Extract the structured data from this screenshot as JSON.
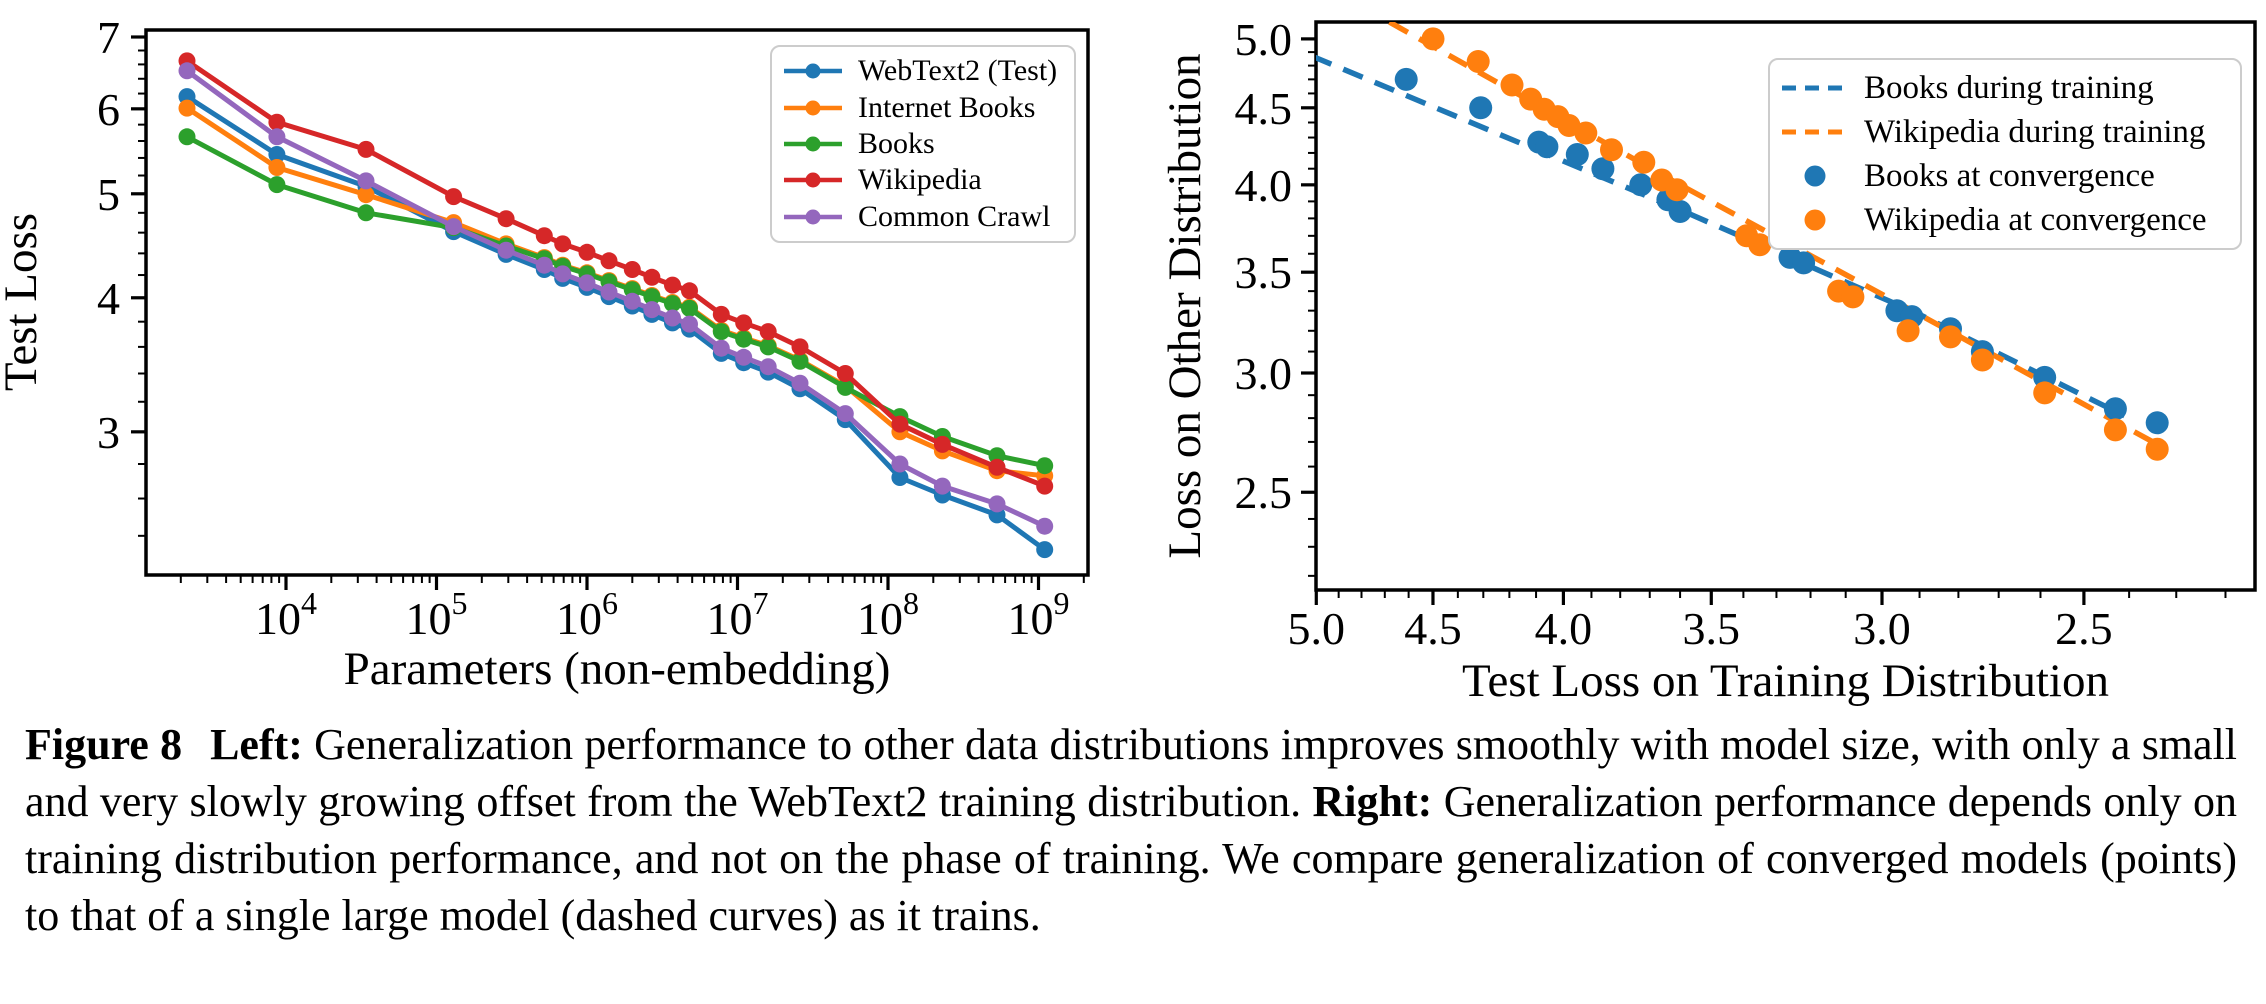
{
  "caption": {
    "figure_label": "Figure 8",
    "left_label": "Left:",
    "left_text": "Generalization performance to other data distributions improves smoothly with model size, with only a small and very slowly growing offset from the WebText2 training distribution.",
    "right_label": "Right:",
    "right_text": "Generalization performance depends only on training distribution performance, and not on the phase of training. We compare generalization of converged models (points) to that of a single large model (dashed curves) as it trains."
  },
  "colors": {
    "blue": "#1f77b4",
    "orange": "#ff7f0e",
    "green": "#2ca02c",
    "red": "#d62728",
    "purple": "#9467bd",
    "axis": "#000000",
    "legend_border": "#cccccc"
  },
  "chart_data": [
    {
      "type": "line",
      "title": "",
      "xlabel": "Parameters (non-embedding)",
      "ylabel": "Test Loss",
      "xscale": "log",
      "yscale": "log",
      "xlim": [
        1175,
        2100000000
      ],
      "ylim": [
        2.21,
        7.1
      ],
      "xticks": [
        10000,
        100000,
        1000000,
        10000000,
        100000000,
        1000000000
      ],
      "yticks": [
        3,
        4,
        5,
        6,
        7
      ],
      "grid": false,
      "legend_position": "upper right",
      "x": [
        2200,
        8700,
        34000,
        130000,
        290000,
        520000,
        690000,
        1000000,
        1400000,
        2000000,
        2700000,
        3700000,
        4800000,
        7800000,
        11000000,
        16000000,
        26000000,
        52000000,
        120000000,
        230000000,
        530000000,
        1100000000
      ],
      "series": [
        {
          "name": "WebText2 (Test)",
          "color": "#1f77b4",
          "values": [
            6.16,
            5.44,
            5.08,
            4.61,
            4.39,
            4.25,
            4.17,
            4.09,
            4.01,
            3.93,
            3.86,
            3.79,
            3.74,
            3.55,
            3.48,
            3.41,
            3.29,
            3.08,
            2.72,
            2.62,
            2.51,
            2.33
          ]
        },
        {
          "name": "Internet Books",
          "color": "#ff7f0e",
          "values": [
            6.01,
            5.29,
            4.99,
            4.7,
            4.49,
            4.36,
            4.29,
            4.22,
            4.15,
            4.08,
            4.02,
            3.96,
            3.92,
            3.73,
            3.67,
            3.61,
            3.5,
            3.31,
            3.0,
            2.88,
            2.76,
            2.73
          ]
        },
        {
          "name": "Books",
          "color": "#2ca02c",
          "values": [
            5.65,
            5.1,
            4.8,
            4.65,
            4.47,
            4.35,
            4.28,
            4.21,
            4.14,
            4.07,
            4.01,
            3.95,
            3.91,
            3.72,
            3.66,
            3.6,
            3.49,
            3.3,
            3.1,
            2.97,
            2.85,
            2.79
          ]
        },
        {
          "name": "Wikipedia",
          "color": "#d62728",
          "values": [
            6.65,
            5.83,
            5.5,
            4.97,
            4.74,
            4.57,
            4.49,
            4.41,
            4.33,
            4.25,
            4.18,
            4.11,
            4.06,
            3.86,
            3.79,
            3.72,
            3.6,
            3.4,
            3.05,
            2.92,
            2.78,
            2.67
          ]
        },
        {
          "name": "Common Crawl",
          "color": "#9467bd",
          "values": [
            6.51,
            5.65,
            5.14,
            4.66,
            4.43,
            4.29,
            4.21,
            4.13,
            4.05,
            3.97,
            3.9,
            3.83,
            3.78,
            3.59,
            3.52,
            3.45,
            3.33,
            3.12,
            2.8,
            2.67,
            2.57,
            2.45
          ]
        }
      ]
    },
    {
      "type": "scatter",
      "title": "",
      "xlabel": "Test Loss on Training Distribution",
      "ylabel": "Loss on Other Distribution",
      "xscale": "log",
      "yscale": "log",
      "x_reversed": true,
      "xlim": [
        5.03,
        2.14
      ],
      "ylim": [
        2.15,
        5.13
      ],
      "xticks": [
        5.0,
        4.5,
        4.0,
        3.5,
        3.0,
        2.5
      ],
      "yticks": [
        5.0,
        4.5,
        4.0,
        3.5,
        3.0,
        2.5
      ],
      "grid": false,
      "legend_position": "upper right",
      "lines": [
        {
          "name": "Books during training",
          "color": "#1f77b4",
          "style": "dashed",
          "points": [
            [
              5.02,
              4.87
            ],
            [
              3.6,
              3.85
            ],
            [
              2.91,
              3.29
            ],
            [
              2.41,
              2.81
            ]
          ]
        },
        {
          "name": "Wikipedia during training",
          "color": "#ff7f0e",
          "style": "dashed",
          "points": [
            [
              4.68,
              5.13
            ],
            [
              3.6,
              4.0
            ],
            [
              2.91,
              3.29
            ],
            [
              2.33,
              2.68
            ]
          ]
        }
      ],
      "scatter": [
        {
          "name": "Books at convergence",
          "color": "#1f77b4",
          "points": [
            [
              4.61,
              4.7
            ],
            [
              4.31,
              4.5
            ],
            [
              4.09,
              4.27
            ],
            [
              4.06,
              4.24
            ],
            [
              3.95,
              4.19
            ],
            [
              3.86,
              4.1
            ],
            [
              3.73,
              4.0
            ],
            [
              3.64,
              3.91
            ],
            [
              3.6,
              3.84
            ],
            [
              3.26,
              3.58
            ],
            [
              3.22,
              3.55
            ],
            [
              2.96,
              3.3
            ],
            [
              2.92,
              3.27
            ],
            [
              2.82,
              3.21
            ],
            [
              2.74,
              3.1
            ],
            [
              2.59,
              2.98
            ],
            [
              2.43,
              2.84
            ],
            [
              2.34,
              2.78
            ]
          ]
        },
        {
          "name": "Wikipedia at convergence",
          "color": "#ff7f0e",
          "points": [
            [
              4.5,
              5.0
            ],
            [
              4.32,
              4.83
            ],
            [
              4.19,
              4.66
            ],
            [
              4.12,
              4.56
            ],
            [
              4.07,
              4.49
            ],
            [
              4.02,
              4.44
            ],
            [
              3.98,
              4.38
            ],
            [
              3.92,
              4.33
            ],
            [
              3.83,
              4.22
            ],
            [
              3.72,
              4.14
            ],
            [
              3.66,
              4.03
            ],
            [
              3.61,
              3.97
            ],
            [
              3.39,
              3.7
            ],
            [
              3.35,
              3.65
            ],
            [
              3.12,
              3.4
            ],
            [
              3.08,
              3.37
            ],
            [
              2.93,
              3.2
            ],
            [
              2.82,
              3.17
            ],
            [
              2.74,
              3.06
            ],
            [
              2.59,
              2.91
            ],
            [
              2.43,
              2.75
            ],
            [
              2.34,
              2.67
            ]
          ]
        }
      ]
    }
  ]
}
